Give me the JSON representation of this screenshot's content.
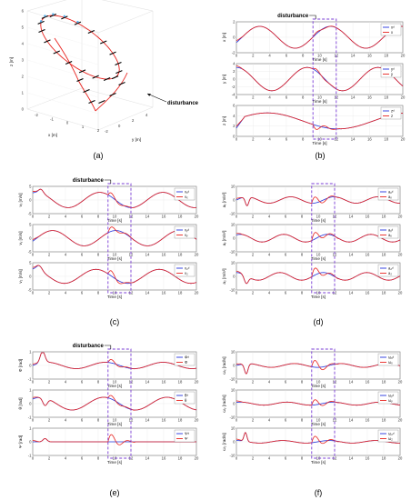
{
  "panel_labels": [
    "(a)",
    "(b)",
    "(c)",
    "(d)",
    "(e)",
    "(f)"
  ],
  "disturbance_label": "disturbance",
  "time_label": "Time [s]",
  "colors": {
    "reference": "#2233dd",
    "actual": "#e8231f",
    "box": "#7a3cd6"
  },
  "chart_data": [
    {
      "panel": "(a)",
      "type": "line",
      "xlabel": "x [m]",
      "ylabel": "y [m]",
      "zlabel": "z [m]",
      "annotation": "disturbance",
      "x_ticks": [
        "-2",
        "-1",
        "0",
        "1",
        "2"
      ],
      "y_ticks": [
        "-2",
        "0",
        "2",
        "4"
      ],
      "z_ticks": [
        "0",
        "1",
        "2",
        "3",
        "4",
        "5",
        "6"
      ]
    },
    {
      "panel": "(b)",
      "type": "line",
      "annotation": "disturbance",
      "subplots": [
        {
          "ylabel": "x [m]",
          "ylim": [
            -2,
            2
          ],
          "yticks": [
            "2",
            "0",
            "-2"
          ],
          "legend": [
            "xᵈ",
            "x"
          ]
        },
        {
          "ylabel": "y [m]",
          "ylim": [
            -4,
            4
          ],
          "yticks": [
            "4",
            "2",
            "0",
            "-2",
            "-4"
          ],
          "legend": [
            "yᵈ",
            "y"
          ]
        },
        {
          "ylabel": "z [m]",
          "ylim": [
            0,
            6
          ],
          "yticks": [
            "6",
            "4",
            "2",
            "0"
          ],
          "legend": [
            "zᵈ",
            "z"
          ]
        }
      ],
      "xticks": [
        "0",
        "2",
        "4",
        "6",
        "8",
        "10",
        "12",
        "14",
        "16",
        "18",
        "20"
      ],
      "xlabel": "Time [s]"
    },
    {
      "panel": "(c)",
      "type": "line",
      "annotation": "disturbance",
      "subplots": [
        {
          "ylabel": "vₓ [m/s]",
          "ylim": [
            -5,
            5
          ],
          "yticks": [
            "5",
            "0",
            "-5"
          ],
          "legend": [
            "vₓᵈ",
            "vₓ"
          ]
        },
        {
          "ylabel": "vᵧ [m/s]",
          "ylim": [
            -5,
            5
          ],
          "yticks": [
            "5",
            "0",
            "-5"
          ],
          "legend": [
            "vᵧᵈ",
            "vᵧ"
          ]
        },
        {
          "ylabel": "v₂ [m/s]",
          "ylim": [
            -5,
            5
          ],
          "yticks": [
            "5",
            "0",
            "-5"
          ],
          "legend": [
            "v₂ᵈ",
            "v₂"
          ]
        }
      ],
      "xticks": [
        "0",
        "2",
        "4",
        "6",
        "8",
        "10",
        "12",
        "14",
        "16",
        "18",
        "20"
      ],
      "xlabel": "Time [s]"
    },
    {
      "panel": "(d)",
      "type": "line",
      "subplots": [
        {
          "ylabel": "aₓ [m/s²]",
          "ylim": [
            -10,
            10
          ],
          "yticks": [
            "10",
            "0",
            "-10"
          ],
          "legend": [
            "aₓᵈ",
            "aₓ"
          ]
        },
        {
          "ylabel": "aᵧ [m/s²]",
          "ylim": [
            -10,
            10
          ],
          "yticks": [
            "10",
            "0",
            "-10"
          ],
          "legend": [
            "aᵧᵈ",
            "aᵧ"
          ]
        },
        {
          "ylabel": "a₂ [m/s²]",
          "ylim": [
            -10,
            10
          ],
          "yticks": [
            "10",
            "0",
            "-10"
          ],
          "legend": [
            "a₂ᵈ",
            "a₂"
          ]
        }
      ],
      "xticks": [
        "0",
        "2",
        "4",
        "6",
        "8",
        "10",
        "12",
        "14",
        "16",
        "18",
        "20"
      ],
      "xlabel": "Time [s]"
    },
    {
      "panel": "(e)",
      "type": "line",
      "annotation": "disturbance",
      "subplots": [
        {
          "ylabel": "Φ [rad]",
          "ylim": [
            -1,
            1
          ],
          "yticks": [
            "1",
            "0",
            "-1"
          ],
          "legend": [
            "Φᵈ",
            "Φ"
          ]
        },
        {
          "ylabel": "θ [rad]",
          "ylim": [
            -1,
            1
          ],
          "yticks": [
            "1",
            "0",
            "-1"
          ],
          "legend": [
            "θᵈ",
            "θ"
          ]
        },
        {
          "ylabel": "Ψ [rad]",
          "ylim": [
            -1,
            1
          ],
          "yticks": [
            "1",
            "0",
            "-1"
          ],
          "legend": [
            "Ψᵈ",
            "Ψ"
          ]
        }
      ],
      "xticks": [
        "0",
        "2",
        "4",
        "6",
        "8",
        "10",
        "12",
        "14",
        "16",
        "18",
        "20"
      ],
      "xlabel": "Time [s]"
    },
    {
      "panel": "(f)",
      "type": "line",
      "subplots": [
        {
          "ylabel": "ωₓ [rad/s]",
          "ylim": [
            -10,
            10
          ],
          "yticks": [
            "10",
            "0",
            "-10"
          ],
          "legend": [
            "ωₓᵈ",
            "ωₓ"
          ]
        },
        {
          "ylabel": "ωᵧ [rad/s]",
          "ylim": [
            -10,
            10
          ],
          "yticks": [
            "10",
            "0",
            "-10"
          ],
          "legend": [
            "ωᵧᵈ",
            "ωᵧ"
          ]
        },
        {
          "ylabel": "ω₂ [rad/s]",
          "ylim": [
            -10,
            10
          ],
          "yticks": [
            "10",
            "0",
            "-10"
          ],
          "legend": [
            "ω₂ᵈ",
            "ω₂"
          ]
        }
      ],
      "xticks": [
        "0",
        "2",
        "4",
        "6",
        "8",
        "10",
        "12",
        "14",
        "16",
        "18",
        "20"
      ],
      "xlabel": "Time [s]"
    }
  ]
}
